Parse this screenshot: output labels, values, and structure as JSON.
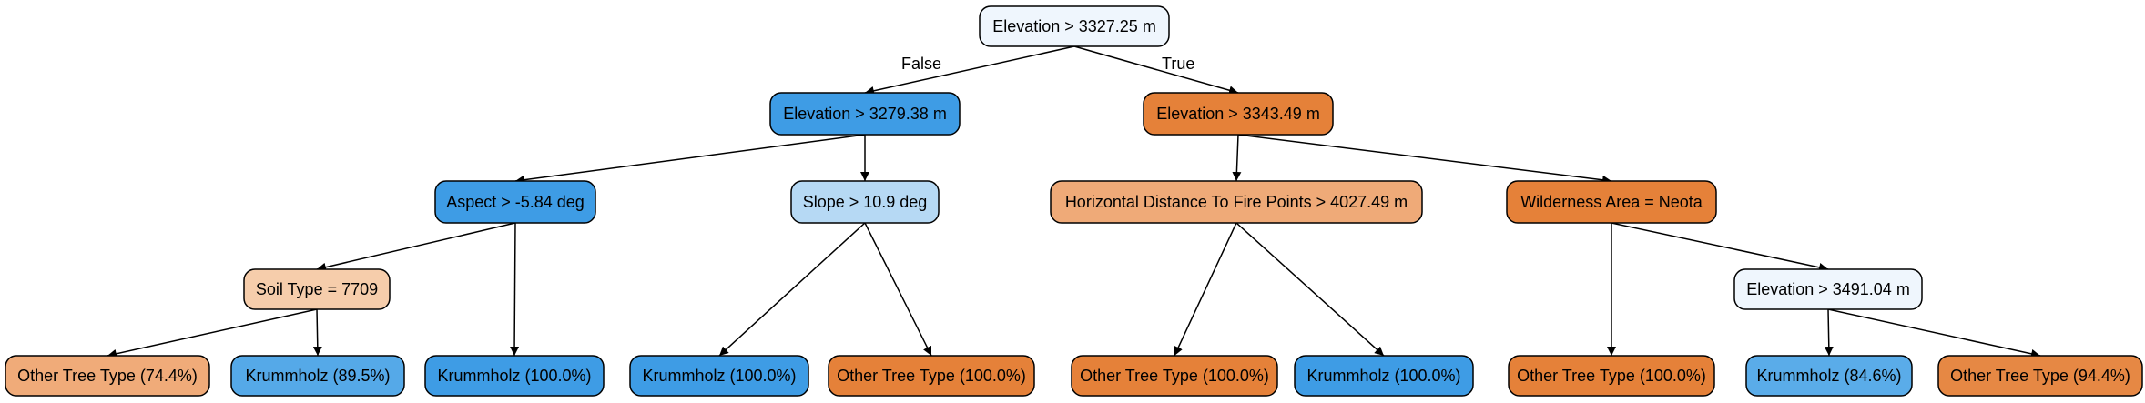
{
  "tree": {
    "nodes": [
      {
        "id": "n0",
        "label": "Elevation > 3327.25 m",
        "fill": "#eff6fd"
      },
      {
        "id": "n1",
        "label": "Elevation > 3279.38 m",
        "fill": "#3e9ce5"
      },
      {
        "id": "n2",
        "label": "Elevation > 3343.49 m",
        "fill": "#e58139"
      },
      {
        "id": "n3",
        "label": "Aspect > -5.84 deg",
        "fill": "#3e9ce5"
      },
      {
        "id": "n4",
        "label": "Slope > 10.9 deg",
        "fill": "#b6d9f4"
      },
      {
        "id": "n5",
        "label": "Horizontal Distance To Fire Points > 4027.49 m",
        "fill": "#efaa78"
      },
      {
        "id": "n6",
        "label": "Wilderness Area = Neota",
        "fill": "#e58139"
      },
      {
        "id": "n7",
        "label": "Soil Type = 7709",
        "fill": "#f6cdab"
      },
      {
        "id": "n8",
        "label": "Elevation > 3491.04 m",
        "fill": "#eff6fd"
      },
      {
        "id": "l0",
        "label": "Other Tree Type (74.4%)",
        "fill": "#f0ab79"
      },
      {
        "id": "l1",
        "label": "Krummholz (89.5%)",
        "fill": "#55a9e8"
      },
      {
        "id": "l2",
        "label": "Krummholz (100.0%)",
        "fill": "#3e9ce5"
      },
      {
        "id": "l3",
        "label": "Krummholz (100.0%)",
        "fill": "#3e9ce5"
      },
      {
        "id": "l4",
        "label": "Other Tree Type (100.0%)",
        "fill": "#e58139"
      },
      {
        "id": "l5",
        "label": "Other Tree Type (100.0%)",
        "fill": "#e58139"
      },
      {
        "id": "l6",
        "label": "Krummholz (100.0%)",
        "fill": "#3e9ce5"
      },
      {
        "id": "l7",
        "label": "Other Tree Type (100.0%)",
        "fill": "#e58139"
      },
      {
        "id": "l8",
        "label": "Krummholz (84.6%)",
        "fill": "#5aace9"
      },
      {
        "id": "l9",
        "label": "Other Tree Type (94.4%)",
        "fill": "#e68844"
      }
    ],
    "edges": [
      {
        "from": "n0",
        "to": "n1",
        "label": "False"
      },
      {
        "from": "n0",
        "to": "n2",
        "label": "True"
      },
      {
        "from": "n1",
        "to": "n3",
        "label": ""
      },
      {
        "from": "n1",
        "to": "n4",
        "label": ""
      },
      {
        "from": "n2",
        "to": "n5",
        "label": ""
      },
      {
        "from": "n2",
        "to": "n6",
        "label": ""
      },
      {
        "from": "n3",
        "to": "n7",
        "label": ""
      },
      {
        "from": "n3",
        "to": "l2",
        "label": ""
      },
      {
        "from": "n4",
        "to": "l3",
        "label": ""
      },
      {
        "from": "n4",
        "to": "l4",
        "label": ""
      },
      {
        "from": "n5",
        "to": "l5",
        "label": ""
      },
      {
        "from": "n5",
        "to": "l6",
        "label": ""
      },
      {
        "from": "n6",
        "to": "l7",
        "label": ""
      },
      {
        "from": "n6",
        "to": "n8",
        "label": ""
      },
      {
        "from": "n7",
        "to": "l0",
        "label": ""
      },
      {
        "from": "n7",
        "to": "l1",
        "label": ""
      },
      {
        "from": "n8",
        "to": "l8",
        "label": ""
      },
      {
        "from": "n8",
        "to": "l9",
        "label": ""
      }
    ]
  }
}
